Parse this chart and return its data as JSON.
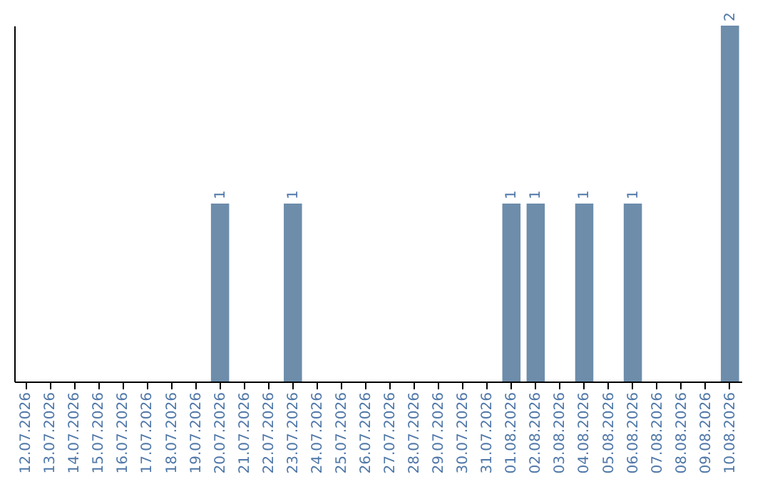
{
  "chart_data": {
    "type": "bar",
    "categories": [
      "12.07.2026",
      "13.07.2026",
      "14.07.2026",
      "15.07.2026",
      "16.07.2026",
      "17.07.2026",
      "18.07.2026",
      "19.07.2026",
      "20.07.2026",
      "21.07.2026",
      "22.07.2026",
      "23.07.2026",
      "24.07.2026",
      "25.07.2026",
      "26.07.2026",
      "27.07.2026",
      "28.07.2026",
      "29.07.2026",
      "30.07.2026",
      "31.07.2026",
      "01.08.2026",
      "02.08.2026",
      "03.08.2026",
      "04.08.2026",
      "05.08.2026",
      "06.08.2026",
      "07.08.2026",
      "08.08.2026",
      "09.08.2026",
      "10.08.2026"
    ],
    "values": [
      0,
      0,
      0,
      0,
      0,
      0,
      0,
      0,
      1,
      0,
      0,
      1,
      0,
      0,
      0,
      0,
      0,
      0,
      0,
      0,
      1,
      1,
      0,
      1,
      0,
      1,
      0,
      0,
      0,
      2
    ],
    "value_labels": [
      null,
      null,
      null,
      null,
      null,
      null,
      null,
      null,
      "1",
      null,
      null,
      "1",
      null,
      null,
      null,
      null,
      null,
      null,
      null,
      null,
      "1",
      "1",
      null,
      "1",
      null,
      "1",
      null,
      null,
      null,
      "2"
    ],
    "color": "#6d8dab",
    "tick_labels": "x",
    "grid": false
  }
}
